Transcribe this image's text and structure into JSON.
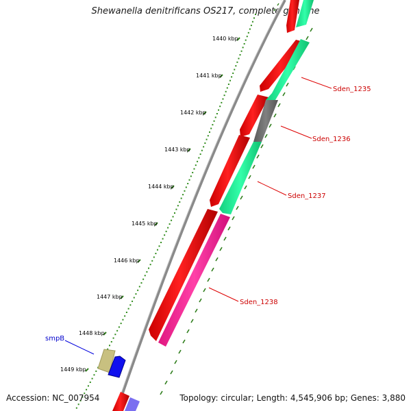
{
  "title": "Shewanella denitrificans OS217, complete genome",
  "footer": {
    "accession": "Accession: NC_007954",
    "summary": "Topology: circular; Length: 4,545,906 bp; Genes: 3,880"
  },
  "colors": {
    "background": "#ffffff",
    "backbone": "#808080",
    "tick_major": "#2e7d1a",
    "tick_minor": "#2e8b1a",
    "forward_gene": "#ee1111",
    "reverse_gene_cds": "#22ee99",
    "reverse_gene_unknown": "#707070",
    "reverse_gene_highlight": "#ff2d9a",
    "label_red": "#cc0000",
    "label_blue": "#0000cc"
  },
  "scale_labels": [
    "1440 kbp",
    "1441 kbp",
    "1442 kbp",
    "1443 kbp",
    "1444 kbp",
    "1445 kbp",
    "1446 kbp",
    "1447 kbp",
    "1448 kbp",
    "1449 kbp"
  ],
  "gene_labels": [
    {
      "name": "Sden_1235",
      "color": "red"
    },
    {
      "name": "Sden_1236",
      "color": "red"
    },
    {
      "name": "Sden_1237",
      "color": "red"
    },
    {
      "name": "Sden_1238",
      "color": "red"
    },
    {
      "name": "smpB",
      "color": "blue"
    }
  ]
}
